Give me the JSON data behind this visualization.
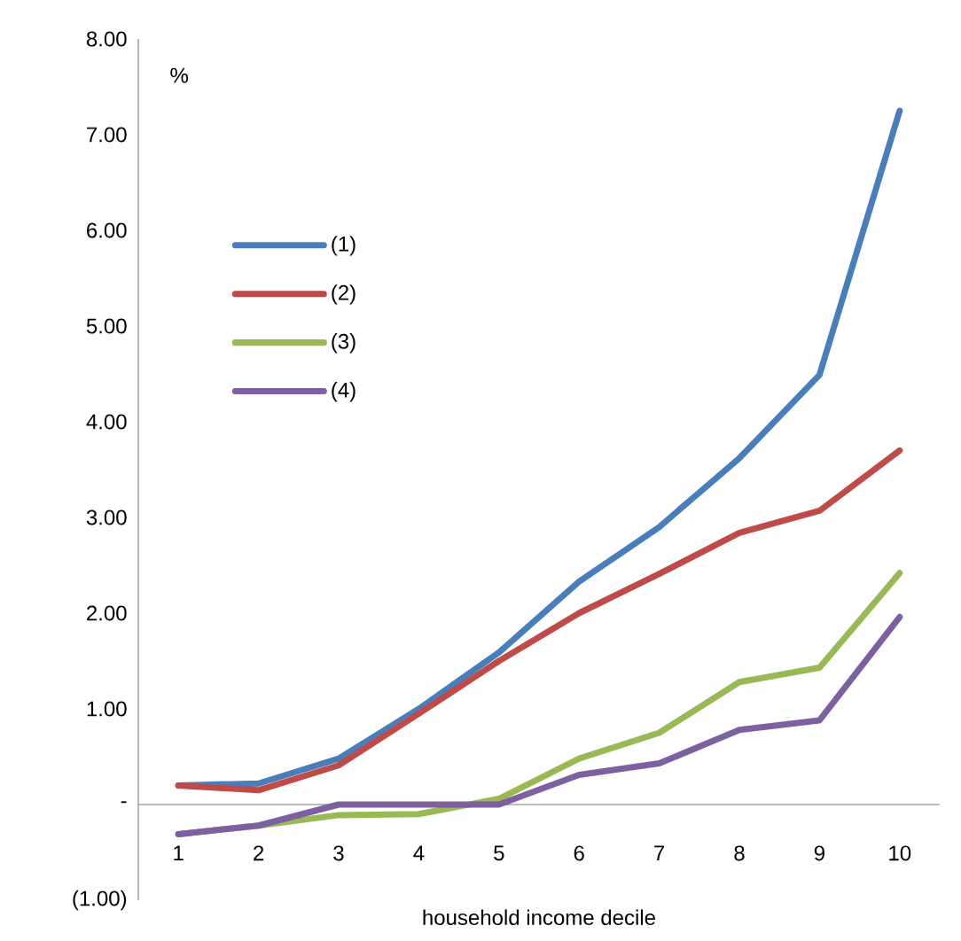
{
  "chart_data": {
    "type": "line",
    "xlabel": "household income decile",
    "annotations": [
      "%"
    ],
    "categories": [
      "1",
      "2",
      "3",
      "4",
      "5",
      "6",
      "7",
      "8",
      "9",
      "10"
    ],
    "series": [
      {
        "name": "(1)",
        "color": "#4a7ebb",
        "values": [
          0.2,
          0.22,
          0.48,
          1.0,
          1.59,
          2.33,
          2.9,
          3.62,
          4.49,
          7.25
        ]
      },
      {
        "name": "(2)",
        "color": "#be4b48",
        "values": [
          0.2,
          0.15,
          0.41,
          0.95,
          1.5,
          2.0,
          2.41,
          2.84,
          3.07,
          3.7
        ]
      },
      {
        "name": "(3)",
        "color": "#98b954",
        "values": [
          -0.31,
          -0.22,
          -0.11,
          -0.1,
          0.06,
          0.48,
          0.75,
          1.28,
          1.43,
          2.42
        ]
      },
      {
        "name": "(4)",
        "color": "#7d60a0",
        "values": [
          -0.31,
          -0.22,
          0.0,
          0.0,
          0.0,
          0.31,
          0.43,
          0.78,
          0.88,
          1.96
        ]
      }
    ],
    "ylim": [
      -1,
      8
    ],
    "yticks": [
      {
        "value": -1,
        "label": "(1.00)"
      },
      {
        "value": 0,
        "label": "-"
      },
      {
        "value": 1,
        "label": "1.00"
      },
      {
        "value": 2,
        "label": "2.00"
      },
      {
        "value": 3,
        "label": "3.00"
      },
      {
        "value": 4,
        "label": "4.00"
      },
      {
        "value": 5,
        "label": "5.00"
      },
      {
        "value": 6,
        "label": "6.00"
      },
      {
        "value": 7,
        "label": "7.00"
      },
      {
        "value": 8,
        "label": "8.00"
      }
    ],
    "grid": false,
    "legend": "top left",
    "line_style": "solid"
  }
}
